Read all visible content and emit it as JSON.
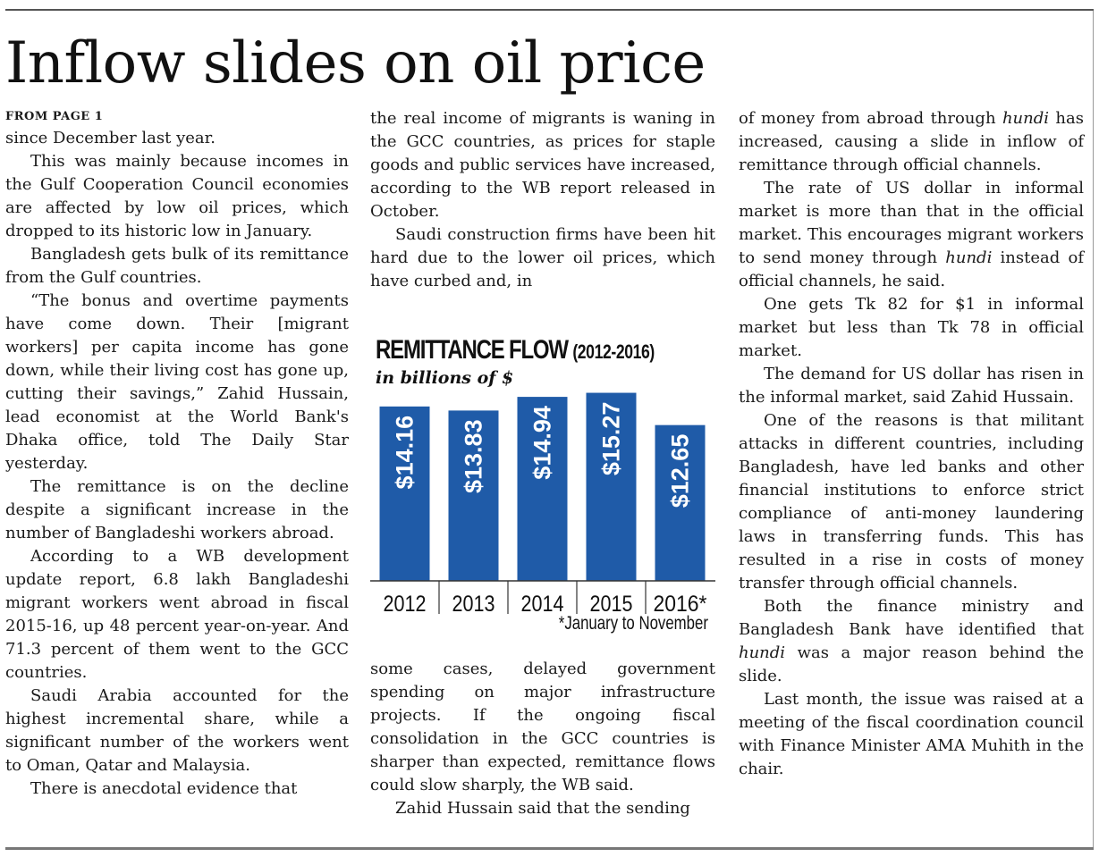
{
  "headline": "Inflow slides on oil price",
  "from_page": "FROM PAGE 1",
  "col1": [
    "since December last year.",
    "This was mainly because incomes in the Gulf Cooperation Council economies are affected by low oil prices, which dropped to its historic low in January.",
    "Bangladesh gets bulk of its remittance from the Gulf countries.",
    "“The bonus and overtime payments have come down. Their [migrant workers] per capita income has gone down, while their living cost has gone up, cutting their savings,” Zahid Hussain, lead economist at the World Bank's Dhaka office, told The Daily Star yesterday.",
    "The remittance is on the decline despite a significant increase in the number of Bangladeshi workers abroad.",
    "According to a WB development update report, 6.8 lakh Bangladeshi migrant workers went abroad in fiscal 2015-16, up 48 percent year-on-year. And 71.3 percent of them went to the GCC countries.",
    "Saudi Arabia accounted for the highest incremental share, while a significant number of the workers went to Oman, Qatar and Malaysia.",
    "There is anecdotal evidence that"
  ],
  "col2_top": [
    "the real income of migrants is waning in the GCC countries, as prices for staple goods and public services have increased, according to the WB report released in October.",
    "Saudi construction firms have been hit hard due to the lower oil prices, which have curbed and, in"
  ],
  "col2_bottom": [
    "some cases, delayed government spending on major infrastructure projects. If the ongoing fiscal consolidation in the GCC countries is sharper than expected, remittance flows could slow sharply, the WB said.",
    "Zahid Hussain said that the sending"
  ],
  "col3": [
    {
      "parts": [
        "of money from abroad through ",
        {
          "i": "hundi"
        },
        " has increased, causing a slide in inflow of remittance through official channels."
      ]
    },
    {
      "parts": [
        "The rate of US dollar in informal market is more than that in the official market. This encourages migrant workers to send money through ",
        {
          "i": "hundi"
        },
        " instead of official channels, he said."
      ]
    },
    {
      "parts": [
        "One gets Tk 82 for $1 in informal market but less than Tk 78 in official market."
      ]
    },
    {
      "parts": [
        "The demand for US dollar has risen in the informal market, said Zahid Hussain."
      ]
    },
    {
      "parts": [
        "One of the reasons is that militant attacks in different countries, including Bangladesh, have led banks and other financial institutions to enforce strict compliance of anti-money laundering laws in transferring funds. This has resulted in a rise in costs of money transfer through official channels."
      ]
    },
    {
      "parts": [
        "Both the finance ministry and Bangladesh Bank have identified that ",
        {
          "i": "hundi"
        },
        " was a major reason behind the slide."
      ]
    },
    {
      "parts": [
        "Last month, the issue was raised at a meeting of the fiscal coordination council with Finance Minister AMA Muhith in the chair."
      ]
    }
  ],
  "chart_data": {
    "type": "bar",
    "title": "REMITTANCE FLOW",
    "title_range": "(2012-2016)",
    "subtitle": "in billions of $",
    "categories": [
      "2012",
      "2013",
      "2014",
      "2015",
      "2016*"
    ],
    "values": [
      14.16,
      13.83,
      14.94,
      15.27,
      12.65
    ],
    "value_labels": [
      "$14.16",
      "$13.83",
      "$14.94",
      "$15.27",
      "$12.65"
    ],
    "footnote": "*January to November",
    "bar_color": "#1f5ba8",
    "label_color": "#ffffff",
    "xlabel": "",
    "ylabel": "",
    "ylim": [
      0,
      15.6
    ],
    "grid": false
  }
}
